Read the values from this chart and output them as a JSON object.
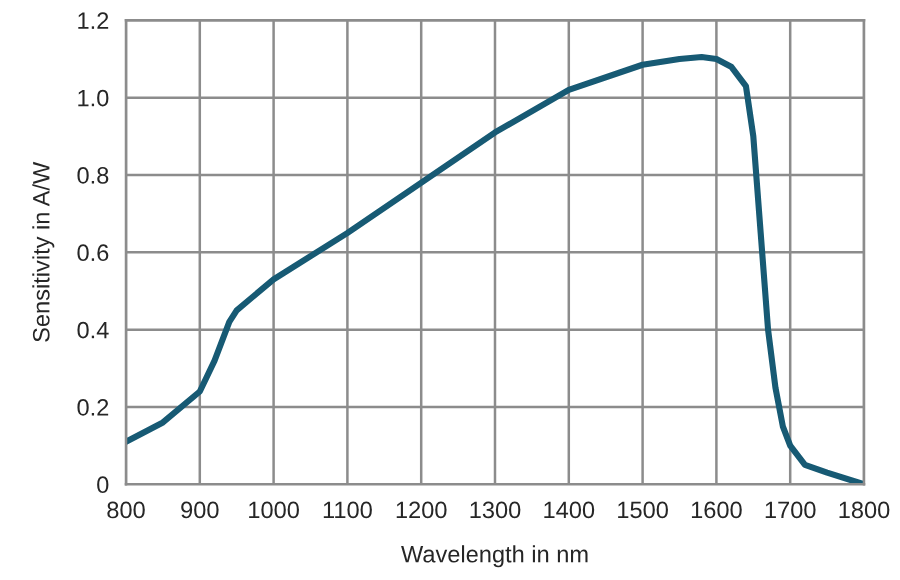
{
  "chart_data": {
    "type": "line",
    "xlabel": "Wavelength in nm",
    "ylabel": "Sensitivity in A/W",
    "xlim": [
      800,
      1800
    ],
    "xticks": [
      800,
      900,
      1000,
      1100,
      1200,
      1300,
      1400,
      1500,
      1600,
      1700,
      1800
    ],
    "ylim": [
      0,
      1.2
    ],
    "yticks": [
      0,
      {
        "value": 0.2,
        "label": "0.2"
      },
      {
        "value": 0.4,
        "label": "0.4"
      },
      {
        "value": 0.6,
        "label": "0.6"
      },
      {
        "value": 0.8,
        "label": "0.8"
      },
      {
        "value": 1.0,
        "label": "1.0"
      },
      {
        "value": 1.2,
        "label": "1.2"
      }
    ],
    "grid": true,
    "legend": false,
    "marker": "none",
    "line_style": "solid",
    "series": [
      {
        "color": "#175a74",
        "x": [
          800,
          850,
          900,
          920,
          940,
          950,
          1000,
          1100,
          1200,
          1300,
          1400,
          1500,
          1550,
          1580,
          1600,
          1620,
          1640,
          1650,
          1660,
          1670,
          1680,
          1690,
          1700,
          1720,
          1750,
          1800
        ],
        "values": [
          0.11,
          0.16,
          0.24,
          0.32,
          0.42,
          0.45,
          0.53,
          0.65,
          0.78,
          0.91,
          1.02,
          1.085,
          1.1,
          1.105,
          1.1,
          1.08,
          1.03,
          0.9,
          0.65,
          0.4,
          0.25,
          0.15,
          0.1,
          0.05,
          0.03,
          0.0
        ]
      }
    ]
  }
}
